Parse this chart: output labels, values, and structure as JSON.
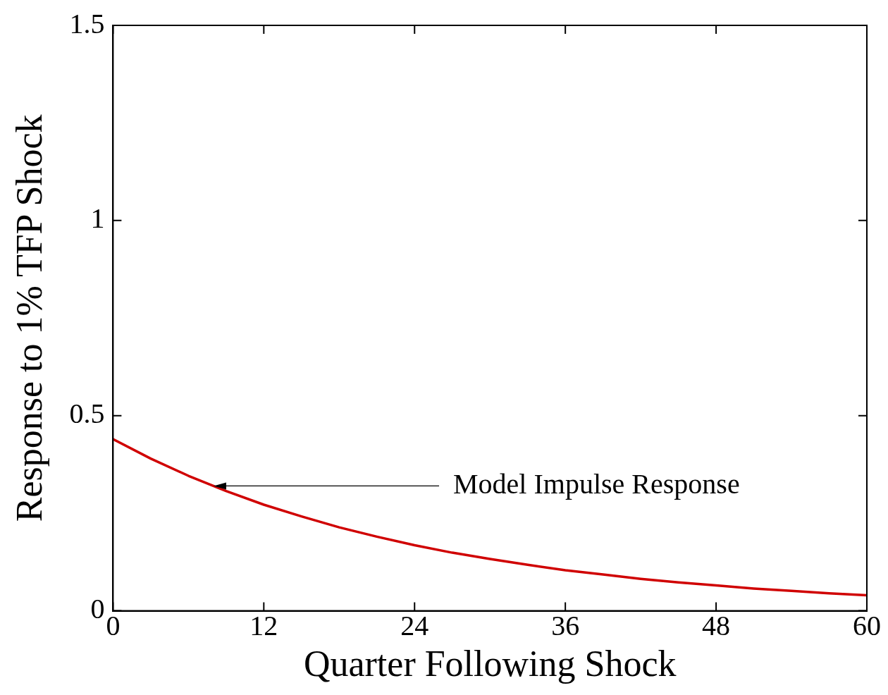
{
  "chart_data": {
    "type": "line",
    "xlabel": "Quarter Following Shock",
    "ylabel": "Response to 1% TFP Shock",
    "x": [
      0,
      3,
      6,
      9,
      12,
      15,
      18,
      21,
      24,
      27,
      30,
      33,
      36,
      39,
      42,
      45,
      48,
      51,
      54,
      57,
      60
    ],
    "series": [
      {
        "color": "#d00000",
        "values": [
          0.44,
          0.39,
          0.346,
          0.307,
          0.272,
          0.242,
          0.214,
          0.19,
          0.168,
          0.149,
          0.133,
          0.118,
          0.104,
          0.093,
          0.082,
          0.073,
          0.065,
          0.057,
          0.051,
          0.045,
          0.04
        ]
      }
    ],
    "xlim": [
      0,
      60
    ],
    "xticks": [
      0,
      12,
      24,
      36,
      48,
      60
    ],
    "ylim": [
      0,
      1.5
    ],
    "yticks": [
      0,
      {
        "value": 0.5,
        "label": "0.5"
      },
      1,
      {
        "value": 1.5,
        "label": "1.5"
      }
    ],
    "annotations": [
      {
        "text": "Model Impulse Response",
        "x": 8,
        "y": 0.32
      }
    ],
    "marker": "none",
    "line_style": "solid",
    "legend": false,
    "grid": false
  }
}
